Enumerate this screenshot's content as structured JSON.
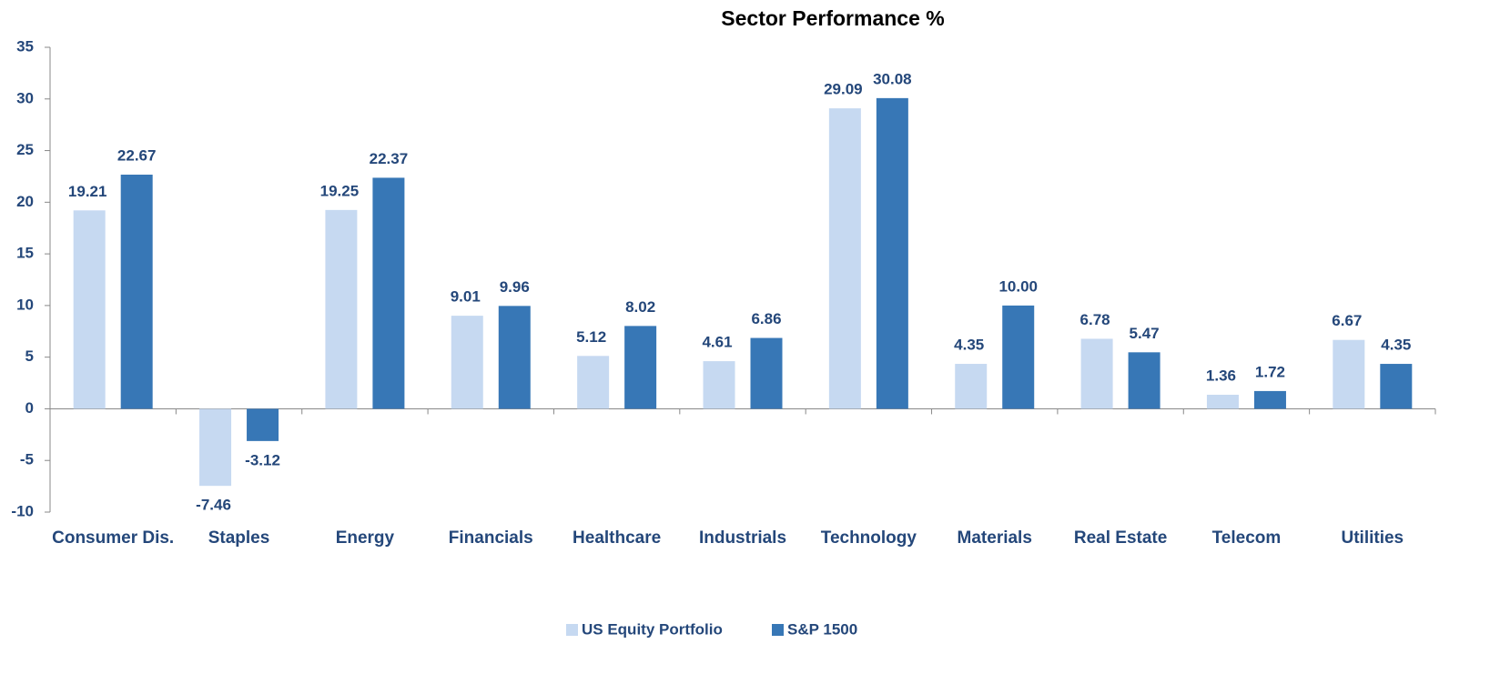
{
  "chart_data": {
    "type": "bar",
    "title": "Sector Performance %",
    "categories": [
      "Consumer Dis.",
      "Staples",
      "Energy",
      "Financials",
      "Healthcare",
      "Industrials",
      "Technology",
      "Materials",
      "Real Estate",
      "Telecom",
      "Utilities"
    ],
    "series": [
      {
        "name": "US Equity Portfolio",
        "color": "#c6d9f1",
        "values": [
          19.21,
          -7.46,
          19.25,
          9.01,
          5.12,
          4.61,
          29.09,
          4.35,
          6.78,
          1.36,
          6.67
        ]
      },
      {
        "name": "S&P 1500",
        "color": "#3777b6",
        "values": [
          22.67,
          -3.12,
          22.37,
          9.96,
          8.02,
          6.86,
          30.08,
          10,
          5.47,
          1.72,
          4.35
        ],
        "value_labels": [
          "22.67",
          "-3.12",
          "22.37",
          "9.96",
          "8.02",
          "6.86",
          "30.08",
          "10.00",
          "5.47",
          "1.72",
          "4.35"
        ]
      }
    ],
    "ylim": [
      -10,
      35
    ],
    "yticks": [
      -10,
      -5,
      0,
      5,
      10,
      15,
      20,
      25,
      30,
      35
    ],
    "legend": "bottom"
  }
}
